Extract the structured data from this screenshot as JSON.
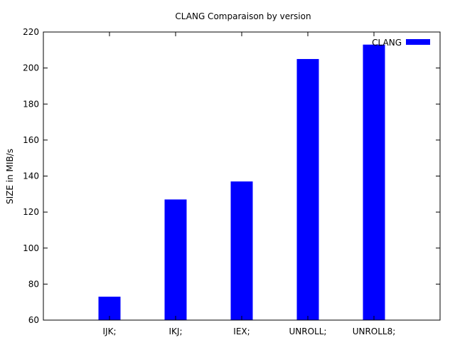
{
  "chart_data": {
    "type": "bar",
    "title": "CLANG Comparaison by version",
    "xlabel": "",
    "ylabel": "SIZE in MIB/s",
    "categories": [
      "IJK;",
      "IKJ;",
      "IEX;",
      "UNROLL;",
      "UNROLL8;"
    ],
    "series": [
      {
        "name": "CLANG",
        "values": [
          73,
          127,
          137,
          205,
          213
        ],
        "color": "#0000ff"
      }
    ],
    "ylim": [
      60,
      220
    ],
    "yticks": [
      60,
      80,
      100,
      120,
      140,
      160,
      180,
      200,
      220
    ],
    "grid": false,
    "legend": "top-right"
  }
}
